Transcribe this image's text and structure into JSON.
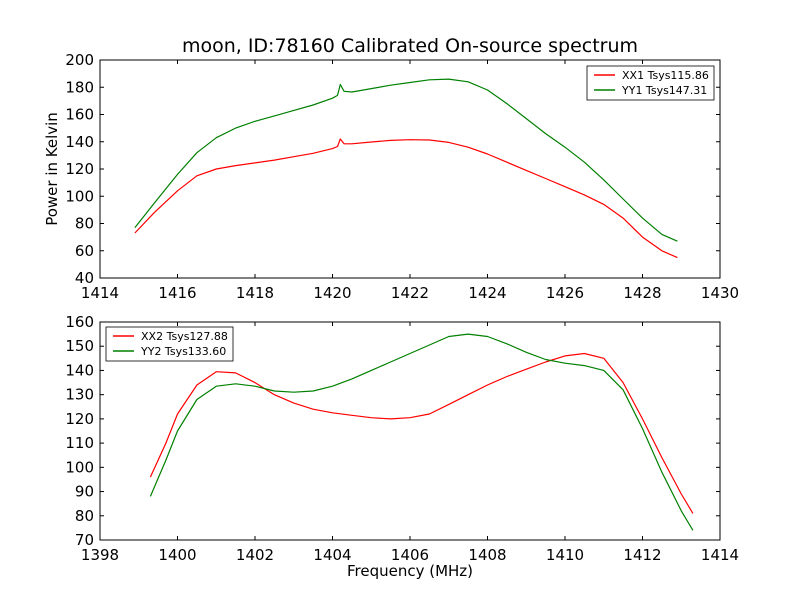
{
  "title": "moon, ID:78160 Calibrated On-source spectrum",
  "ylabel": "Power in Kelvin",
  "xlabel": "Frequency (MHz)",
  "chart_data": [
    {
      "type": "line",
      "xlim": [
        1414,
        1430
      ],
      "ylim": [
        40,
        200
      ],
      "xticks": [
        1414,
        1416,
        1418,
        1420,
        1422,
        1424,
        1426,
        1428,
        1430
      ],
      "yticks": [
        40,
        60,
        80,
        100,
        120,
        140,
        160,
        180,
        200
      ],
      "legend_position": "top-right",
      "series": [
        {
          "name": "XX1 Tsys115.86",
          "color": "#ff0000",
          "x": [
            1414.9,
            1415.4,
            1416.0,
            1416.5,
            1417.0,
            1417.5,
            1418.0,
            1418.5,
            1419.0,
            1419.5,
            1420.0,
            1420.13,
            1420.2,
            1420.3,
            1420.5,
            1421.0,
            1421.5,
            1422.0,
            1422.5,
            1423.0,
            1423.5,
            1424.0,
            1424.5,
            1425.0,
            1425.5,
            1426.0,
            1426.5,
            1427.0,
            1427.5,
            1428.0,
            1428.5,
            1428.9
          ],
          "y": [
            73,
            88,
            104,
            115,
            120,
            122.5,
            124.5,
            126.5,
            129,
            131.5,
            135,
            136.5,
            142,
            138.5,
            138.5,
            139.8,
            141,
            141.5,
            141.3,
            139.5,
            136,
            131,
            125,
            119,
            113,
            107,
            101,
            94,
            84,
            70,
            60,
            55
          ]
        },
        {
          "name": "YY1 Tsys147.31",
          "color": "#008000",
          "x": [
            1414.9,
            1415.4,
            1416.0,
            1416.5,
            1417.0,
            1417.5,
            1418.0,
            1418.5,
            1419.0,
            1419.5,
            1420.0,
            1420.13,
            1420.2,
            1420.3,
            1420.5,
            1421.0,
            1421.5,
            1422.0,
            1422.5,
            1423.0,
            1423.5,
            1424.0,
            1424.5,
            1425.0,
            1425.5,
            1426.0,
            1426.5,
            1427.0,
            1427.5,
            1428.0,
            1428.5,
            1428.9
          ],
          "y": [
            77,
            95,
            116,
            132,
            143,
            150,
            155,
            159,
            163,
            167,
            172,
            174,
            182,
            177,
            176.5,
            179,
            181.5,
            183.5,
            185.5,
            186,
            184,
            178,
            168,
            157,
            146,
            136,
            125,
            112,
            98,
            84,
            72,
            67
          ]
        }
      ]
    },
    {
      "type": "line",
      "xlim": [
        1398,
        1414
      ],
      "ylim": [
        70,
        160
      ],
      "xticks": [
        1398,
        1400,
        1402,
        1404,
        1406,
        1408,
        1410,
        1412,
        1414
      ],
      "yticks": [
        70,
        80,
        90,
        100,
        110,
        120,
        130,
        140,
        150,
        160
      ],
      "legend_position": "top-left",
      "series": [
        {
          "name": "XX2 Tsys127.88",
          "color": "#ff0000",
          "x": [
            1399.3,
            1399.7,
            1400.0,
            1400.5,
            1401.0,
            1401.5,
            1402.0,
            1402.5,
            1403.0,
            1403.5,
            1404.0,
            1404.5,
            1405.0,
            1405.5,
            1406.0,
            1406.5,
            1407.0,
            1407.5,
            1408.0,
            1408.5,
            1409.0,
            1409.5,
            1410.0,
            1410.5,
            1411.0,
            1411.5,
            1412.0,
            1412.5,
            1413.0,
            1413.3
          ],
          "y": [
            96,
            110,
            122,
            134,
            139.5,
            139,
            135,
            130,
            126.5,
            124,
            122.5,
            121.5,
            120.5,
            120,
            120.5,
            122,
            126,
            130,
            134,
            137.5,
            140.5,
            143.5,
            146,
            147,
            145,
            135,
            120,
            104,
            89,
            81
          ]
        },
        {
          "name": "YY2 Tsys133.60",
          "color": "#008000",
          "x": [
            1399.3,
            1399.7,
            1400.0,
            1400.5,
            1401.0,
            1401.5,
            1402.0,
            1402.5,
            1403.0,
            1403.5,
            1404.0,
            1404.5,
            1405.0,
            1405.5,
            1406.0,
            1406.5,
            1407.0,
            1407.5,
            1408.0,
            1408.5,
            1409.0,
            1409.5,
            1410.0,
            1410.5,
            1411.0,
            1411.5,
            1412.0,
            1412.5,
            1413.0,
            1413.3
          ],
          "y": [
            88,
            103,
            115,
            128,
            133.5,
            134.5,
            133.5,
            131.5,
            131,
            131.5,
            133.5,
            136.5,
            140,
            143.5,
            147,
            150.5,
            154,
            155,
            154,
            151,
            147.5,
            144.5,
            143,
            142,
            140,
            132,
            116,
            98,
            82,
            74
          ]
        }
      ]
    }
  ]
}
